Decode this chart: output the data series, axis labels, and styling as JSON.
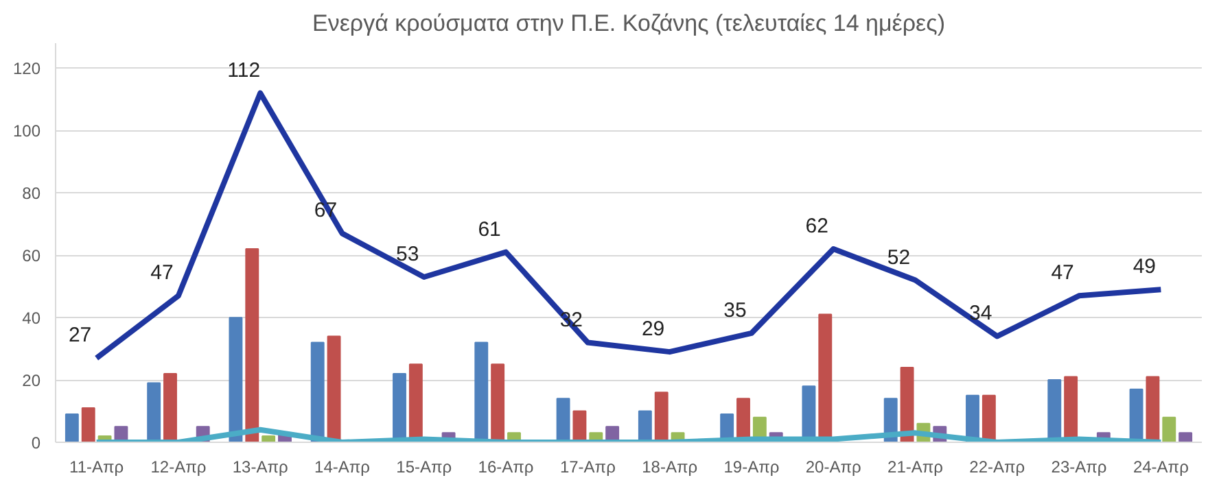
{
  "chart_data": {
    "type": "bar",
    "title": "Ενεργά κρούσματα στην Π.Ε. Κοζάνης (τελευταίες 14 ημέρες)",
    "categories": [
      "11-Απρ",
      "12-Απρ",
      "13-Απρ",
      "14-Απρ",
      "15-Απρ",
      "16-Απρ",
      "17-Απρ",
      "18-Απρ",
      "19-Απρ",
      "20-Απρ",
      "21-Απρ",
      "22-Απρ",
      "23-Απρ",
      "24-Απρ"
    ],
    "series": [
      {
        "color": "#4f81bd",
        "values": [
          9,
          19,
          40,
          32,
          22,
          32,
          14,
          10,
          9,
          18,
          14,
          15,
          20,
          17
        ]
      },
      {
        "color": "#c0504d",
        "values": [
          11,
          22,
          62,
          34,
          25,
          25,
          10,
          16,
          14,
          41,
          24,
          15,
          21,
          21
        ]
      },
      {
        "color": "#9bbb59",
        "values": [
          2,
          0,
          2,
          0,
          0,
          3,
          3,
          3,
          8,
          0,
          6,
          null,
          0,
          8
        ]
      },
      {
        "color": "#8064a2",
        "values": [
          5,
          5,
          3,
          0,
          3,
          0,
          5,
          0,
          3,
          0,
          5,
          null,
          3,
          3
        ]
      },
      {
        "type": "line",
        "color": "#1f36a0",
        "values": [
          27,
          47,
          112,
          67,
          53,
          61,
          32,
          29,
          35,
          62,
          52,
          34,
          47,
          49
        ],
        "value_labels": [
          "27",
          "47",
          "112",
          "67",
          "53",
          "61",
          "32",
          "29",
          "35",
          "62",
          "52",
          "34",
          "47",
          "49"
        ]
      },
      {
        "type": "line",
        "color": "#4bacc6",
        "values": [
          0,
          0,
          4,
          0,
          1,
          0,
          0,
          0,
          1,
          1,
          3,
          0,
          1,
          0
        ]
      }
    ],
    "ylim": [
      0,
      128
    ],
    "yticks": [
      0,
      20,
      40,
      60,
      80,
      100,
      120
    ],
    "grid": "y",
    "line_style": "solid",
    "marker": "none"
  }
}
